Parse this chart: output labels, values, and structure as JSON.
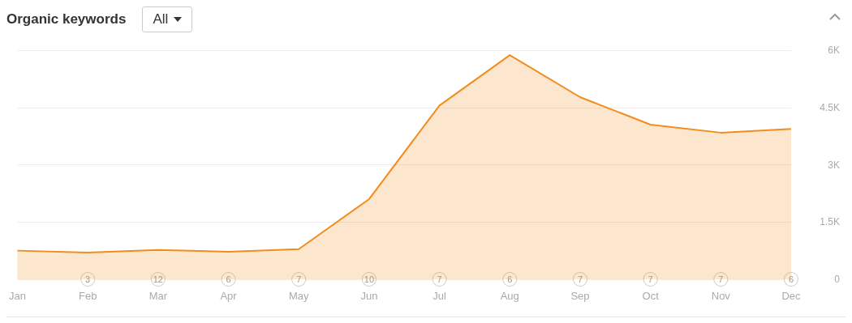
{
  "chart_data": {
    "type": "area",
    "title": "Organic keywords",
    "categories": [
      "Jan",
      "Feb",
      "Mar",
      "Apr",
      "May",
      "Jun",
      "Jul",
      "Aug",
      "Sep",
      "Oct",
      "Nov",
      "Dec"
    ],
    "series": [
      {
        "color": "#f28c1c",
        "values": [
          750,
          700,
          770,
          720,
          790,
          2100,
          4550,
          5870,
          4770,
          4050,
          3840,
          3940
        ]
      }
    ],
    "ylim": [
      0,
      6000
    ],
    "yticks": [
      0,
      {
        "value": 1500,
        "label": "1.5K"
      },
      {
        "value": 3000,
        "label": "3K"
      },
      {
        "value": 4500,
        "label": "4.5K"
      },
      {
        "value": 6000,
        "label": "6K"
      }
    ],
    "grid": "y",
    "marker": "none",
    "line_style": "solid",
    "annotations": [
      "All",
      {
        "text": "3",
        "x": "Feb"
      },
      {
        "text": "12",
        "x": "Mar"
      },
      {
        "text": "6",
        "x": "Apr"
      },
      {
        "text": "7",
        "x": "May"
      },
      {
        "text": "10",
        "x": "Jun"
      },
      {
        "text": "7",
        "x": "Jul"
      },
      {
        "text": "6",
        "x": "Aug"
      },
      {
        "text": "7",
        "x": "Sep"
      },
      {
        "text": "7",
        "x": "Oct"
      },
      {
        "text": "7",
        "x": "Nov"
      },
      {
        "text": "6",
        "x": "Dec"
      }
    ]
  }
}
